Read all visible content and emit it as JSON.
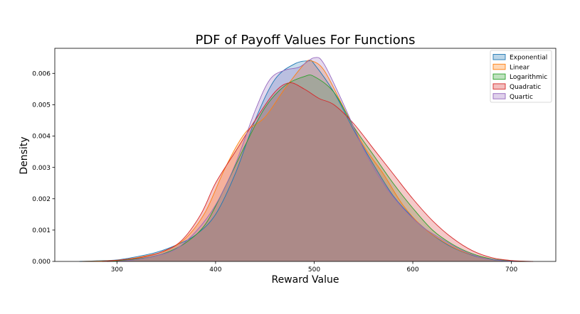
{
  "chart_data": {
    "type": "area",
    "title": "PDF of Payoff Values For Functions",
    "xlabel": "Reward Value",
    "ylabel": "Density",
    "xlim": [
      237,
      745
    ],
    "ylim": [
      0,
      0.0068
    ],
    "xticks": [
      300,
      400,
      500,
      600,
      700
    ],
    "yticks": [
      0.0,
      0.001,
      0.002,
      0.003,
      0.004,
      0.005,
      0.006
    ],
    "ytick_labels": [
      "0.000",
      "0.001",
      "0.002",
      "0.003",
      "0.004",
      "0.005",
      "0.006"
    ],
    "grid": false,
    "legend_position": "top-right",
    "series": [
      {
        "name": "Exponential",
        "color": "#1f77b4",
        "points": [
          [
            262,
            0
          ],
          [
            280,
            2e-05
          ],
          [
            300,
            5e-05
          ],
          [
            320,
            0.00015
          ],
          [
            340,
            0.00029
          ],
          [
            360,
            0.00052
          ],
          [
            380,
            0.00085
          ],
          [
            400,
            0.0015
          ],
          [
            420,
            0.0028
          ],
          [
            440,
            0.0045
          ],
          [
            460,
            0.0058
          ],
          [
            480,
            0.0063
          ],
          [
            495,
            0.0064
          ],
          [
            500,
            0.0063
          ],
          [
            520,
            0.0054
          ],
          [
            540,
            0.0042
          ],
          [
            560,
            0.0031
          ],
          [
            580,
            0.0021
          ],
          [
            600,
            0.0014
          ],
          [
            620,
            0.00085
          ],
          [
            640,
            0.00045
          ],
          [
            660,
            0.0002
          ],
          [
            680,
            6e-05
          ],
          [
            700,
            1e-05
          ],
          [
            720,
            0
          ]
        ]
      },
      {
        "name": "Linear",
        "color": "#ff7f0e",
        "points": [
          [
            265,
            0
          ],
          [
            290,
            2e-05
          ],
          [
            310,
            7e-05
          ],
          [
            330,
            0.00018
          ],
          [
            350,
            0.00035
          ],
          [
            370,
            0.00075
          ],
          [
            390,
            0.0016
          ],
          [
            410,
            0.003
          ],
          [
            430,
            0.0041
          ],
          [
            450,
            0.0046
          ],
          [
            470,
            0.0055
          ],
          [
            490,
            0.0063
          ],
          [
            497,
            0.0064
          ],
          [
            510,
            0.0061
          ],
          [
            530,
            0.0049
          ],
          [
            550,
            0.0037
          ],
          [
            570,
            0.0028
          ],
          [
            590,
            0.0018
          ],
          [
            610,
            0.0011
          ],
          [
            630,
            0.00065
          ],
          [
            650,
            0.00032
          ],
          [
            670,
            0.00013
          ],
          [
            690,
            4e-05
          ],
          [
            710,
            0
          ]
        ]
      },
      {
        "name": "Logarithmic",
        "color": "#2ca02c",
        "points": [
          [
            290,
            0
          ],
          [
            310,
            5e-05
          ],
          [
            330,
            0.00012
          ],
          [
            350,
            0.00028
          ],
          [
            370,
            0.0006
          ],
          [
            390,
            0.0012
          ],
          [
            410,
            0.0024
          ],
          [
            430,
            0.0037
          ],
          [
            450,
            0.0049
          ],
          [
            470,
            0.0056
          ],
          [
            490,
            0.0059
          ],
          [
            500,
            0.0059
          ],
          [
            520,
            0.0054
          ],
          [
            540,
            0.0043
          ],
          [
            560,
            0.0034
          ],
          [
            580,
            0.0025
          ],
          [
            600,
            0.0017
          ],
          [
            620,
            0.001
          ],
          [
            640,
            0.00055
          ],
          [
            660,
            0.00025
          ],
          [
            680,
            8e-05
          ],
          [
            700,
            2e-05
          ],
          [
            715,
            0
          ]
        ]
      },
      {
        "name": "Quadratic",
        "color": "#d62728",
        "points": [
          [
            285,
            0
          ],
          [
            305,
            5e-05
          ],
          [
            325,
            0.00013
          ],
          [
            345,
            0.0003
          ],
          [
            365,
            0.00065
          ],
          [
            385,
            0.0015
          ],
          [
            400,
            0.0025
          ],
          [
            420,
            0.0035
          ],
          [
            440,
            0.0045
          ],
          [
            460,
            0.0054
          ],
          [
            475,
            0.0057
          ],
          [
            490,
            0.0055
          ],
          [
            505,
            0.0052
          ],
          [
            520,
            0.005
          ],
          [
            540,
            0.0044
          ],
          [
            560,
            0.0036
          ],
          [
            580,
            0.0028
          ],
          [
            600,
            0.002
          ],
          [
            620,
            0.0013
          ],
          [
            640,
            0.00075
          ],
          [
            660,
            0.00035
          ],
          [
            680,
            0.00012
          ],
          [
            700,
            3e-05
          ],
          [
            722,
            0
          ]
        ]
      },
      {
        "name": "Quartic",
        "color": "#9467bd",
        "points": [
          [
            300,
            0
          ],
          [
            320,
            6e-05
          ],
          [
            340,
            0.00018
          ],
          [
            360,
            0.0004
          ],
          [
            380,
            0.00095
          ],
          [
            400,
            0.0018
          ],
          [
            420,
            0.0031
          ],
          [
            440,
            0.0048
          ],
          [
            455,
            0.0058
          ],
          [
            470,
            0.0061
          ],
          [
            485,
            0.0062
          ],
          [
            500,
            0.0065
          ],
          [
            510,
            0.0063
          ],
          [
            530,
            0.005
          ],
          [
            550,
            0.0036
          ],
          [
            570,
            0.0025
          ],
          [
            590,
            0.0017
          ],
          [
            610,
            0.0011
          ],
          [
            630,
            0.0007
          ],
          [
            650,
            0.00035
          ],
          [
            670,
            0.00012
          ],
          [
            690,
            3e-05
          ],
          [
            705,
            0
          ]
        ]
      }
    ]
  }
}
